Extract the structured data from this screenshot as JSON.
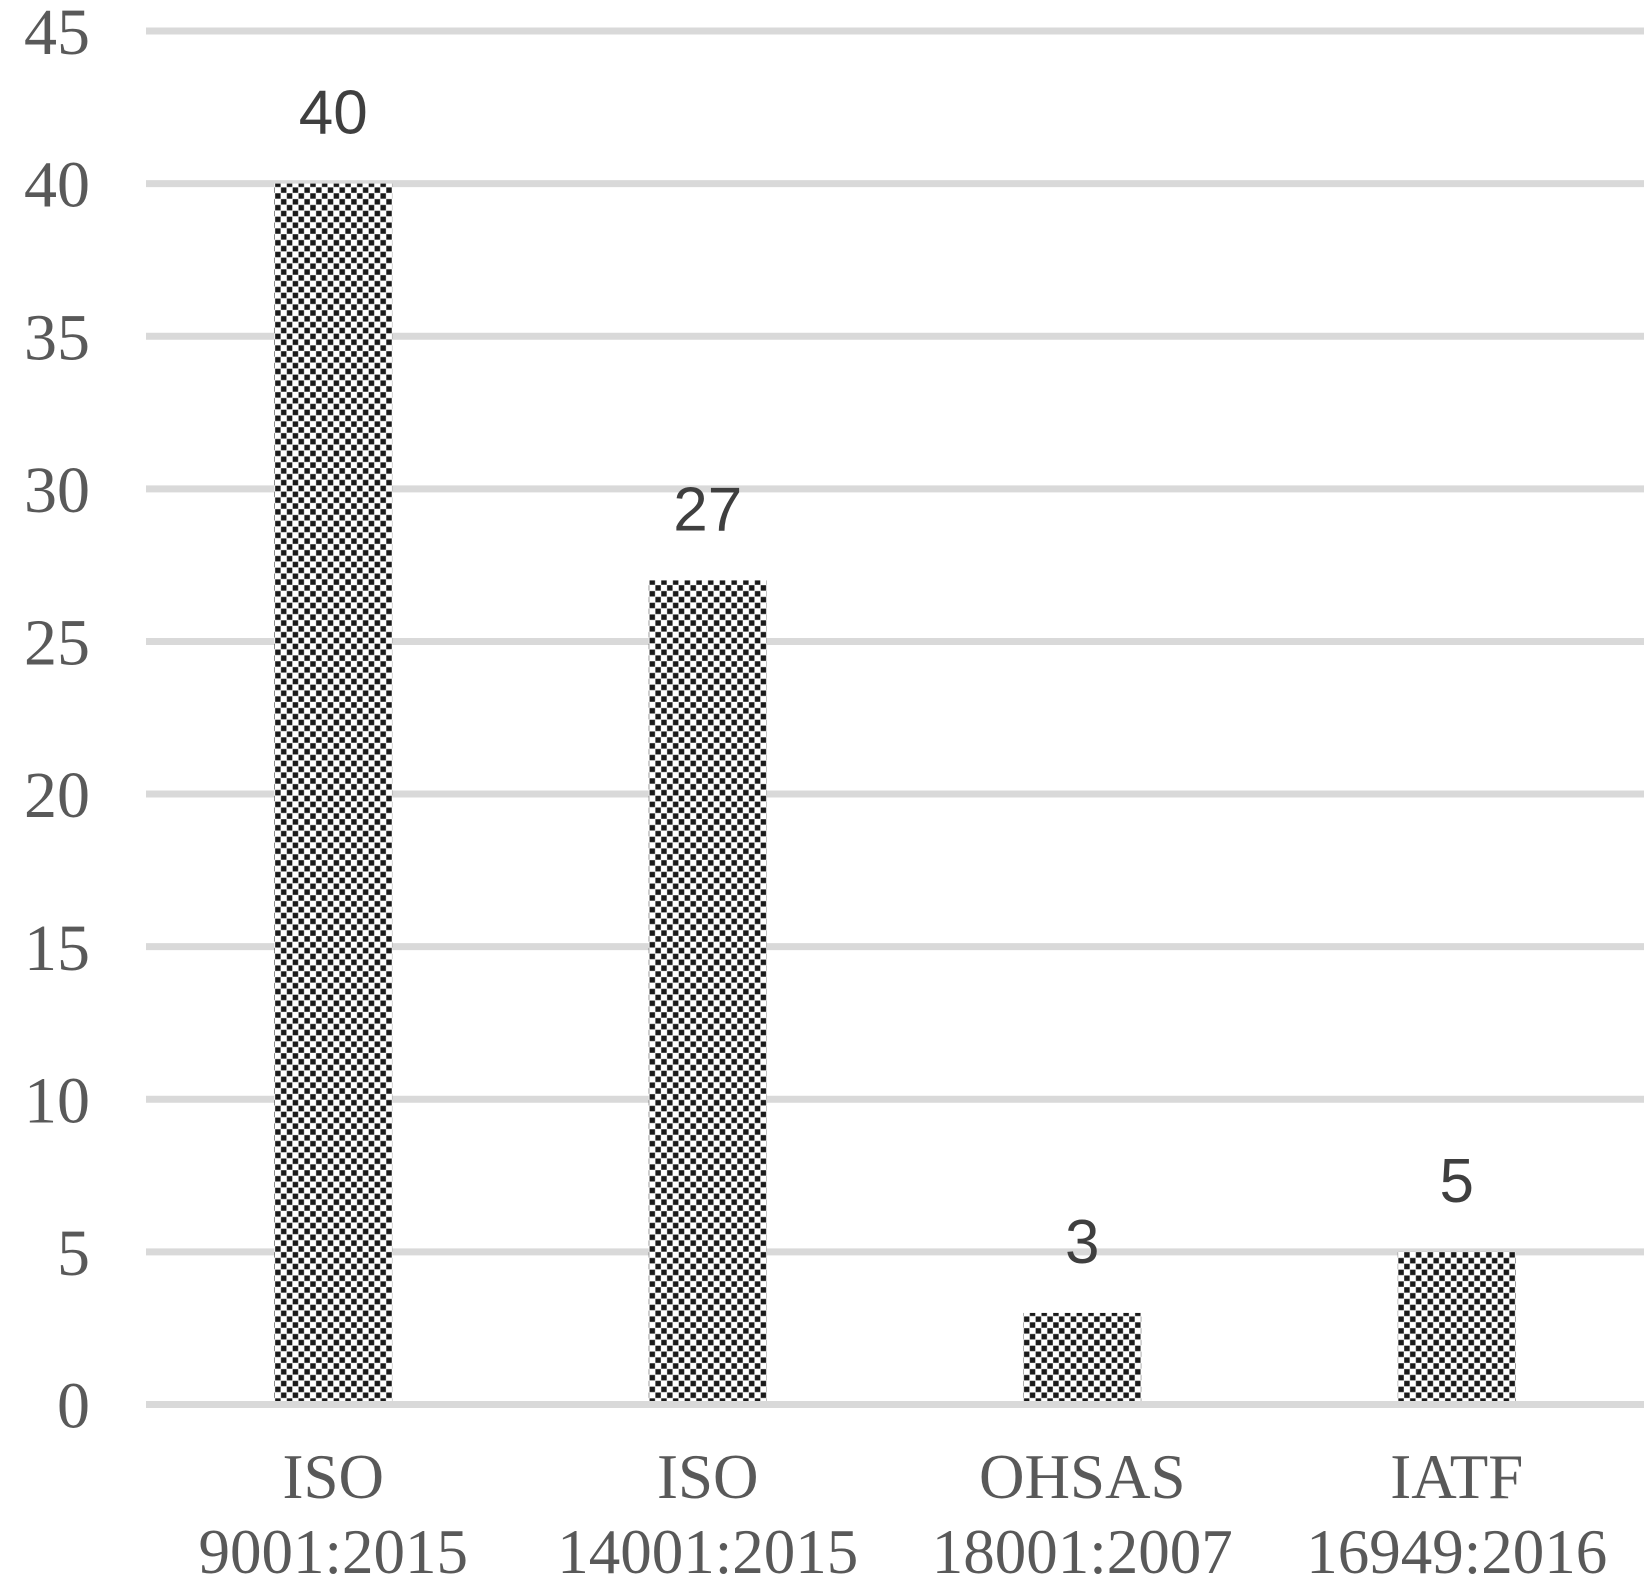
{
  "chart_data": {
    "type": "bar",
    "title": "",
    "xlabel": "",
    "ylabel": "",
    "categories": [
      [
        "ISO",
        "9001:2015"
      ],
      [
        "ISO",
        "14001:2015"
      ],
      [
        "OHSAS",
        "18001:2007"
      ],
      [
        "IATF",
        "16949:2016"
      ]
    ],
    "values": [
      40,
      27,
      3,
      5
    ],
    "data_labels": [
      "40",
      "27",
      "3",
      "5"
    ],
    "y_ticks": [
      "0",
      "5",
      "10",
      "15",
      "20",
      "25",
      "30",
      "35",
      "40",
      "45"
    ],
    "y_tick_values": [
      0,
      5,
      10,
      15,
      20,
      25,
      30,
      35,
      40,
      45
    ],
    "ylim": [
      0,
      45
    ],
    "grid": "horizontal-only",
    "legend": "none",
    "bar_fill_style": "small-checkerboard-pattern",
    "colors": {
      "pattern_foreground": "#1a1a1a",
      "pattern_background": "#ffffff",
      "gridline": "#d9d9d9",
      "axis_label": "#595959",
      "data_label": "#3f3f3f",
      "background": "#ffffff"
    }
  }
}
